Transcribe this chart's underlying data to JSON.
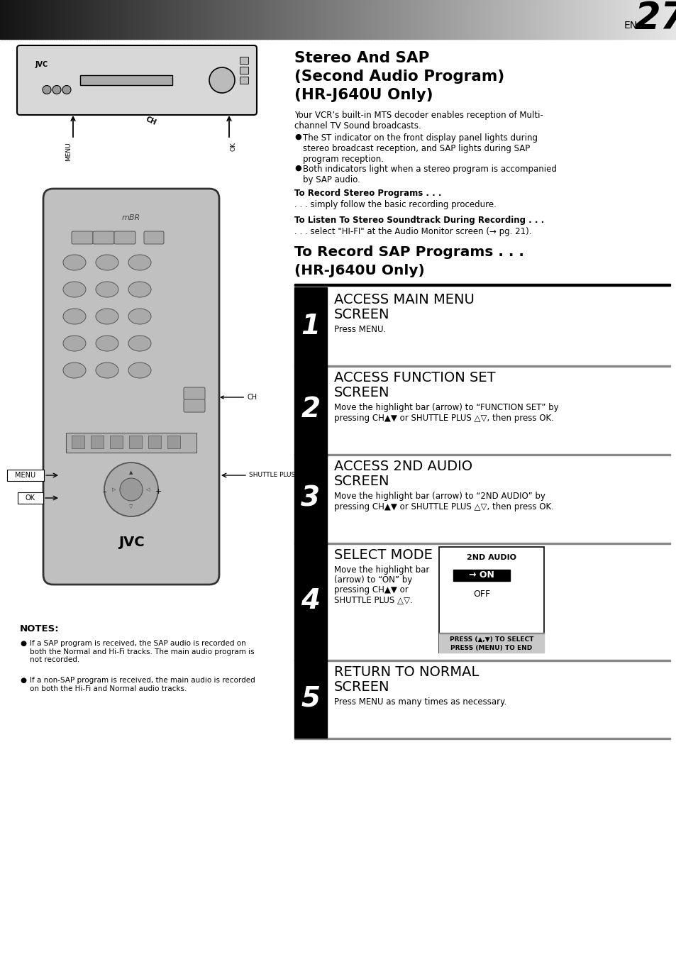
{
  "page_number": "27",
  "page_label": "EN",
  "bg_color": "#ffffff",
  "main_title_lines": [
    "Stereo And SAP",
    "(Second Audio Program)",
    "(HR-J640U Only)"
  ],
  "body_intro": "Your VCR’s built-in MTS decoder enables reception of Multi-\nchannel TV Sound broadcasts.",
  "bullet1": "The ST indicator on the front display panel lights during\nstereo broadcast reception, and SAP lights during SAP\nprogram reception.",
  "bullet2": "Both indicators light when a stereo program is accompanied\nby SAP audio.",
  "record_stereo_bold": "To Record Stereo Programs . . .",
  "record_stereo_text": ". . . simply follow the basic recording procedure.",
  "listen_stereo_bold": "To Listen To Stereo Soundtrack During Recording . . .",
  "listen_stereo_text": ". . . select \"HI-FI\" at the Audio Monitor screen (→ pg. 21).",
  "section_title_lines": [
    "To Record SAP Programs . . .",
    "(HR-J640U Only)"
  ],
  "steps": [
    {
      "num": "1",
      "heading": "ACCESS MAIN MENU\nSCREEN",
      "body_normal": "Press ",
      "body_bold": "MENU",
      "body_tail": ".",
      "body_plain": "Press MENU.",
      "has_box": false
    },
    {
      "num": "2",
      "heading": "ACCESS FUNCTION SET\nSCREEN",
      "body_plain": "Move the highlight bar (arrow) to “FUNCTION SET” by\npressing CH▲▼ or SHUTTLE PLUS △▽, then press OK.",
      "has_box": false
    },
    {
      "num": "3",
      "heading": "ACCESS 2ND AUDIO\nSCREEN",
      "body_plain": "Move the highlight bar (arrow) to “2ND AUDIO” by\npressing CH▲▼ or SHUTTLE PLUS △▽, then press OK.",
      "has_box": false
    },
    {
      "num": "4",
      "heading": "SELECT MODE",
      "body_plain": "Move the highlight bar\n(arrow) to “ON” by\npressing CH▲▼ or\nSHUTTLE PLUS △▽.",
      "has_box": true,
      "box_title": "2ND AUDIO",
      "box_selected": "→ ON",
      "box_unselected": "OFF",
      "box_footer1": "PRESS (▲,▼) TO SELECT",
      "box_footer2": "PRESS (MENU) TO END"
    },
    {
      "num": "5",
      "heading": "RETURN TO NORMAL\nSCREEN",
      "body_plain": "Press MENU as many times as necessary.",
      "has_box": false
    }
  ],
  "notes_title": "NOTES:",
  "notes": [
    "If a SAP program is received, the SAP audio is recorded on\nboth the Normal and Hi-Fi tracks. The main audio program is\nnot recorded.",
    "If a non-SAP program is received, the main audio is recorded\non both the Hi-Fi and Normal audio tracks."
  ]
}
